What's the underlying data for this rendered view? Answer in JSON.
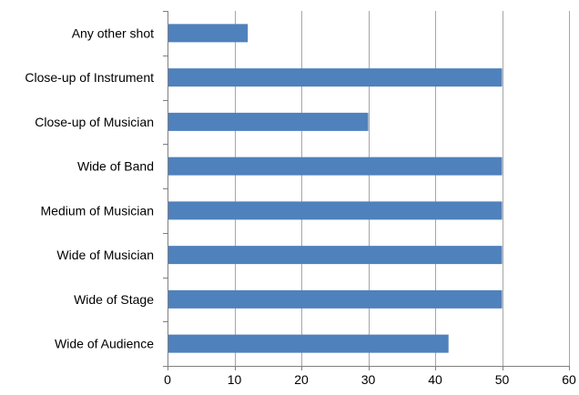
{
  "chart_data": {
    "type": "bar",
    "orientation": "horizontal",
    "categories": [
      "Any other shot",
      "Close-up of Instrument",
      "Close-up of Musician",
      "Wide of Band",
      "Medium of Musician",
      "Wide of Musician",
      "Wide of Stage",
      "Wide of Audience"
    ],
    "values": [
      12,
      50,
      30,
      50,
      50,
      50,
      50,
      42
    ],
    "xlim": [
      0,
      60
    ],
    "xticks": [
      0,
      10,
      20,
      30,
      40,
      50,
      60
    ],
    "grid": true,
    "bar_color": "#4f81bd",
    "title": "",
    "xlabel": "",
    "ylabel": ""
  }
}
